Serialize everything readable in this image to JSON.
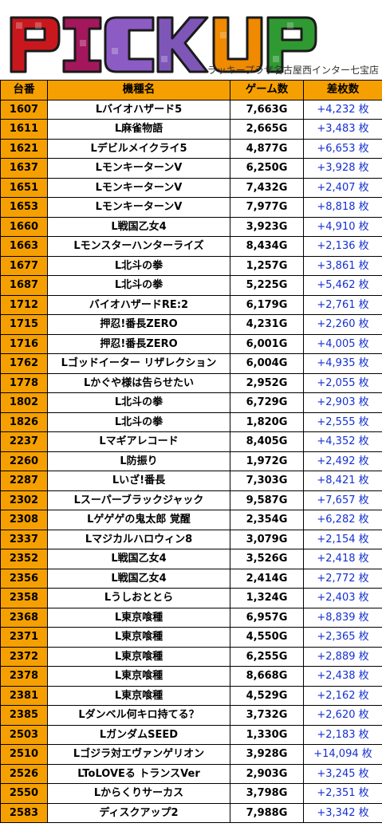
{
  "banner": {
    "title": "PICKUP",
    "store": "ラッキープラザ名古屋西インター七宝店"
  },
  "table": {
    "headers": [
      "台番",
      "機種名",
      "ゲーム数",
      "差枚数"
    ],
    "rows": [
      {
        "no": "1607",
        "name": "Lバイオハザード5",
        "games": "7,663G",
        "diff": "+4,232 枚"
      },
      {
        "no": "1611",
        "name": "L麻雀物語",
        "games": "2,665G",
        "diff": "+3,483 枚"
      },
      {
        "no": "1621",
        "name": "Lデビルメイクライ5",
        "games": "4,877G",
        "diff": "+6,653 枚"
      },
      {
        "no": "1637",
        "name": "LモンキーターンV",
        "games": "6,250G",
        "diff": "+3,928 枚"
      },
      {
        "no": "1651",
        "name": "LモンキーターンV",
        "games": "7,432G",
        "diff": "+2,407 枚"
      },
      {
        "no": "1653",
        "name": "LモンキーターンV",
        "games": "7,977G",
        "diff": "+8,818 枚"
      },
      {
        "no": "1660",
        "name": "L戦国乙女4",
        "games": "3,923G",
        "diff": "+4,910 枚"
      },
      {
        "no": "1663",
        "name": "Lモンスターハンターライズ",
        "games": "8,434G",
        "diff": "+2,136 枚"
      },
      {
        "no": "1677",
        "name": "L北斗の拳",
        "games": "1,257G",
        "diff": "+3,861 枚"
      },
      {
        "no": "1687",
        "name": "L北斗の拳",
        "games": "5,225G",
        "diff": "+5,462 枚"
      },
      {
        "no": "1712",
        "name": "バイオハザードRE:2",
        "games": "6,179G",
        "diff": "+2,761 枚"
      },
      {
        "no": "1715",
        "name": "押忍!番長ZERO",
        "games": "4,231G",
        "diff": "+2,260 枚"
      },
      {
        "no": "1716",
        "name": "押忍!番長ZERO",
        "games": "6,001G",
        "diff": "+4,005 枚"
      },
      {
        "no": "1762",
        "name": "Lゴッドイーター リザレクション",
        "games": "6,004G",
        "diff": "+4,935 枚"
      },
      {
        "no": "1778",
        "name": "Lかぐや様は告らせたい",
        "games": "2,952G",
        "diff": "+2,055 枚"
      },
      {
        "no": "1802",
        "name": "L北斗の拳",
        "games": "6,729G",
        "diff": "+2,903 枚"
      },
      {
        "no": "1826",
        "name": "L北斗の拳",
        "games": "1,820G",
        "diff": "+2,555 枚"
      },
      {
        "no": "2237",
        "name": "Lマギアレコード",
        "games": "8,405G",
        "diff": "+4,352 枚"
      },
      {
        "no": "2260",
        "name": "L防振り",
        "games": "1,972G",
        "diff": "+2,492 枚"
      },
      {
        "no": "2287",
        "name": "Lいざ!番長",
        "games": "7,303G",
        "diff": "+8,421 枚"
      },
      {
        "no": "2302",
        "name": "Lスーパーブラックジャック",
        "games": "9,587G",
        "diff": "+7,657 枚"
      },
      {
        "no": "2308",
        "name": "Lゲゲゲの鬼太郎 覚醒",
        "games": "2,354G",
        "diff": "+6,282 枚"
      },
      {
        "no": "2337",
        "name": "Lマジカルハロウィン8",
        "games": "3,079G",
        "diff": "+2,154 枚"
      },
      {
        "no": "2352",
        "name": "L戦国乙女4",
        "games": "3,526G",
        "diff": "+2,418 枚"
      },
      {
        "no": "2356",
        "name": "L戦国乙女4",
        "games": "2,414G",
        "diff": "+2,772 枚"
      },
      {
        "no": "2358",
        "name": "Lうしおととら",
        "games": "1,324G",
        "diff": "+2,403 枚"
      },
      {
        "no": "2368",
        "name": "L東京喰種",
        "games": "6,957G",
        "diff": "+8,839 枚"
      },
      {
        "no": "2371",
        "name": "L東京喰種",
        "games": "4,550G",
        "diff": "+2,365 枚"
      },
      {
        "no": "2372",
        "name": "L東京喰種",
        "games": "6,255G",
        "diff": "+2,889 枚"
      },
      {
        "no": "2378",
        "name": "L東京喰種",
        "games": "8,668G",
        "diff": "+2,438 枚"
      },
      {
        "no": "2381",
        "name": "L東京喰種",
        "games": "4,529G",
        "diff": "+2,162 枚"
      },
      {
        "no": "2385",
        "name": "Lダンベル何キロ持てる？",
        "games": "3,732G",
        "diff": "+2,620 枚"
      },
      {
        "no": "2503",
        "name": "LガンダムSEED",
        "games": "1,330G",
        "diff": "+2,183 枚"
      },
      {
        "no": "2510",
        "name": "Lゴジラ対エヴァンゲリオン",
        "games": "3,928G",
        "diff": "+14,094 枚"
      },
      {
        "no": "2526",
        "name": "LToLOVEる トランスVer",
        "games": "2,903G",
        "diff": "+3,245 枚"
      },
      {
        "no": "2550",
        "name": "Lからくりサーカス",
        "games": "3,798G",
        "diff": "+2,351 枚"
      },
      {
        "no": "2583",
        "name": "ディスクアップ2",
        "games": "7,988G",
        "diff": "+3,342 枚"
      }
    ]
  },
  "colors": {
    "header_bg": "#f5a000",
    "diff_text": "#1530d0",
    "letter_P": "#c8181e",
    "letter_I": "#a4175c",
    "letter_C": "#8c5bc4",
    "letter_K": "#7e56b8",
    "letter_U": "#f08a00",
    "letter_P2": "#2f9a32"
  }
}
